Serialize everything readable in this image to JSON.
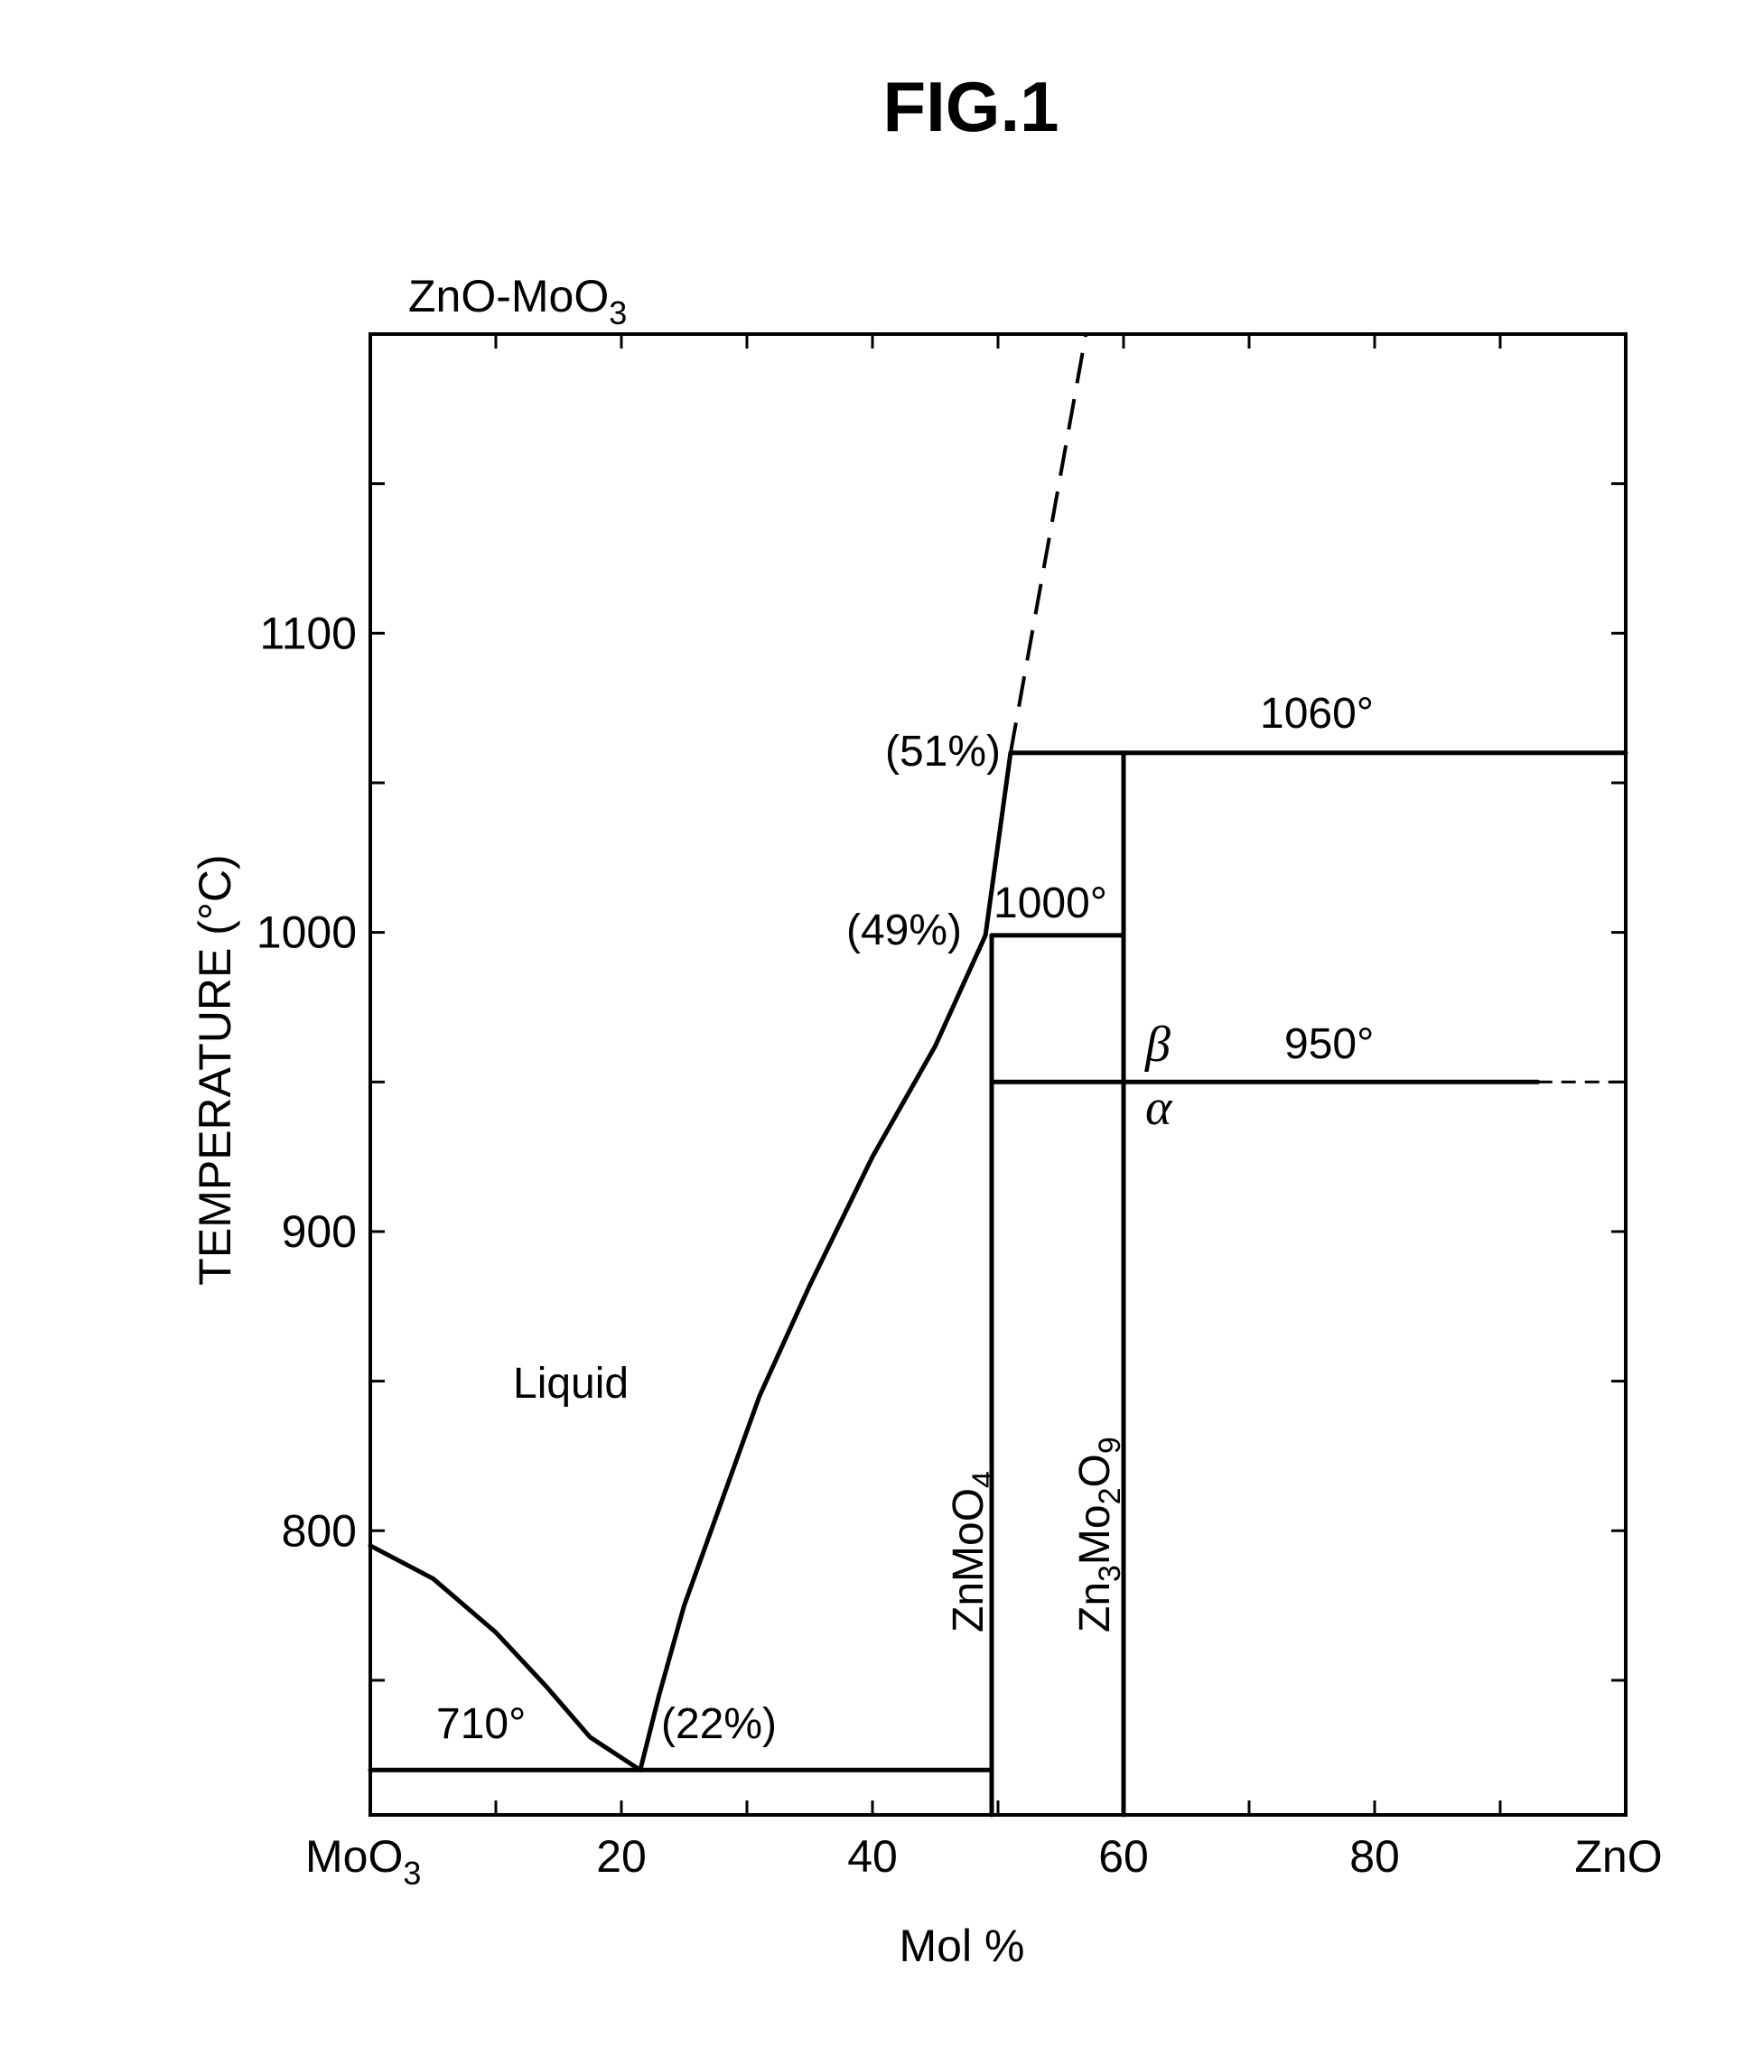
{
  "figure": {
    "title": "FIG.1",
    "system_label": "ZnO-MoO",
    "system_label_sub": "3",
    "y_axis_label": "TEMPERATURE (°C)",
    "x_axis_label": "Mol %",
    "x_left_end": "MoO",
    "x_left_end_sub": "3",
    "x_right_end": "ZnO"
  },
  "annotations": {
    "liquid": "Liquid",
    "t_710": "710°",
    "t_1000": "1000°",
    "t_950": "950°",
    "t_1060": "1060°",
    "p_22": "(22%)",
    "p_49": "(49%)",
    "p_51": "(51%)",
    "beta": "β",
    "alpha": "α",
    "compound1_a": "ZnMoO",
    "compound1_sub": "4",
    "compound2_a": "Zn",
    "compound2_sub1": "3",
    "compound2_b": "Mo",
    "compound2_sub2": "2",
    "compound2_c": "O",
    "compound2_sub3": "9"
  },
  "chart_data": {
    "type": "phase_diagram",
    "x_unit": "Mol % ZnO",
    "y_unit": "°C",
    "xlim": [
      0,
      100
    ],
    "ylim": [
      705,
      1200
    ],
    "x_ticks": [
      {
        "value": 20,
        "label": "20"
      },
      {
        "value": 40,
        "label": "40"
      },
      {
        "value": 60,
        "label": "60"
      },
      {
        "value": 80,
        "label": "80"
      }
    ],
    "y_ticks": [
      {
        "value": 800,
        "label": "800"
      },
      {
        "value": 900,
        "label": "900"
      },
      {
        "value": 1000,
        "label": "1000"
      },
      {
        "value": 1100,
        "label": "1100"
      }
    ],
    "curves": [
      {
        "name": "MoO3 liquidus",
        "style": "solid",
        "points": [
          [
            0,
            795
          ],
          [
            5,
            784
          ],
          [
            10,
            766
          ],
          [
            14,
            748
          ],
          [
            17.5,
            731
          ],
          [
            21.5,
            720
          ]
        ]
      },
      {
        "name": "ZnMoO4 liquidus",
        "style": "solid",
        "points": [
          [
            21.5,
            720
          ],
          [
            23,
            745
          ],
          [
            25,
            775
          ],
          [
            28,
            810
          ],
          [
            31,
            845
          ],
          [
            35,
            882
          ],
          [
            40,
            925
          ],
          [
            45,
            962
          ],
          [
            49,
            999
          ]
        ]
      },
      {
        "name": "peritectic liquidus",
        "style": "solid",
        "points": [
          [
            49,
            999
          ],
          [
            51,
            1060
          ]
        ]
      },
      {
        "name": "liquidus extrapolated",
        "style": "dashed",
        "points": [
          [
            51,
            1060
          ],
          [
            57,
            1200
          ]
        ]
      },
      {
        "name": "eutectic",
        "style": "solid",
        "points": [
          [
            0,
            720
          ],
          [
            49.5,
            720
          ]
        ]
      },
      {
        "name": "ZnMoO4 line",
        "style": "solid",
        "points": [
          [
            49.5,
            705
          ],
          [
            49.5,
            999
          ]
        ]
      },
      {
        "name": "Zn3Mo2O9 line",
        "style": "solid",
        "points": [
          [
            60,
            705
          ],
          [
            60,
            1060
          ]
        ]
      },
      {
        "name": "1000 isotherm",
        "style": "solid",
        "points": [
          [
            49.5,
            999
          ],
          [
            60,
            999
          ]
        ]
      },
      {
        "name": "950 transition",
        "style": "solid",
        "points": [
          [
            49.5,
            950
          ],
          [
            93,
            950
          ]
        ]
      },
      {
        "name": "950 transition extension",
        "style": "dashed-fine",
        "points": [
          [
            93,
            950
          ],
          [
            100,
            950
          ]
        ]
      },
      {
        "name": "1060 isotherm",
        "style": "solid",
        "points": [
          [
            51,
            1060
          ],
          [
            100,
            1060
          ]
        ]
      }
    ]
  }
}
